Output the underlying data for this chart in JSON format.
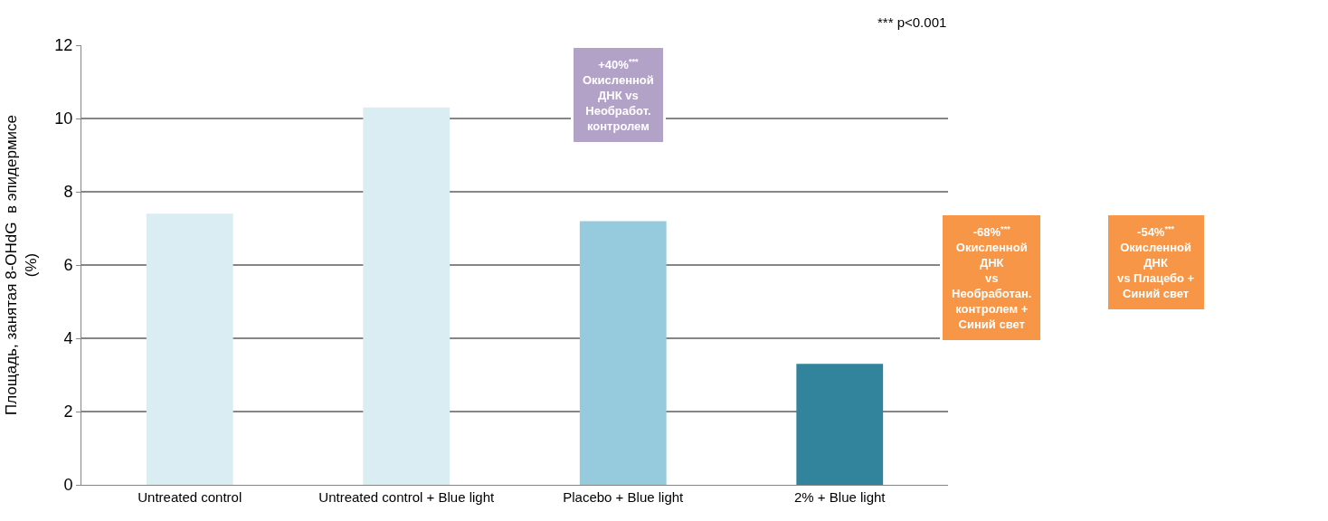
{
  "chart_data": {
    "type": "bar",
    "ylabel": "Площадь, занятая 8-OHdG  в эпидермисе\n(%)",
    "categories": [
      "Untreated control",
      "Untreated control + Blue light",
      "Placebo + Blue light",
      "2% + Blue light"
    ],
    "values": [
      7.4,
      10.3,
      7.2,
      3.3
    ],
    "colors": [
      "#daedf3",
      "#daedf3",
      "#95cbdc",
      "#31849b"
    ],
    "ylim": [
      0,
      12
    ],
    "yticks": [
      0,
      2,
      4,
      6,
      8,
      10,
      12
    ],
    "grid": "y",
    "annotations": [
      "*** p<0.001",
      "+40%$^{***}$\nОкисленной\nДНК vs\nНеобработ.\nконтролем",
      "-68%$^{***}$\nОкисленной\nДНК\nvs\nНеобработан.\nконтролем +\nСиний свет",
      "-54%$^{***}$\nОкисленной\nДНК\nvs Плацебо +\nСиний свет"
    ]
  }
}
